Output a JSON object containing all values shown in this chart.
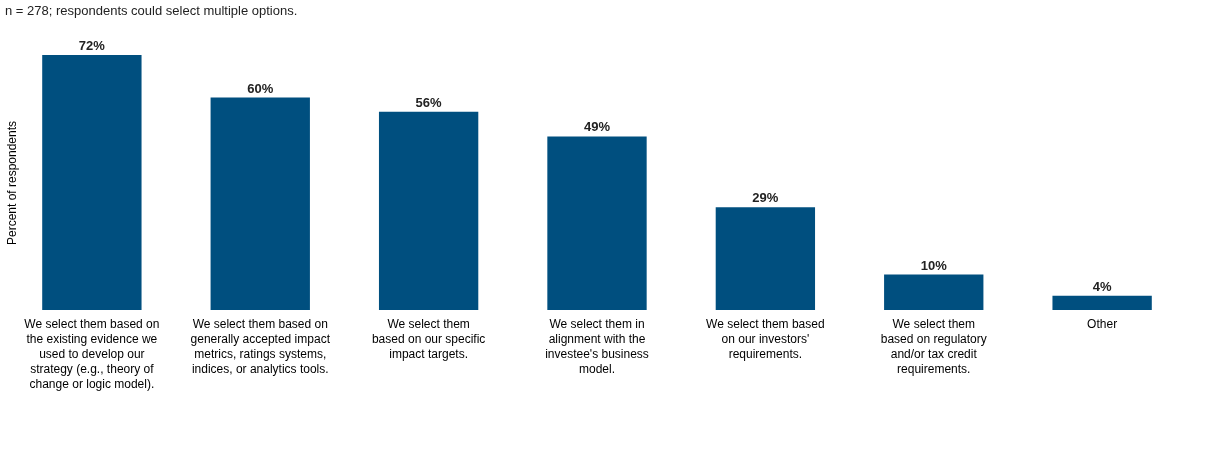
{
  "chart_data": {
    "type": "bar",
    "subtitle": "n = 278; respondents could select multiple options.",
    "ylabel": "Percent of respondents",
    "categories": [
      "We select them based on\nthe existing evidence we\nused to develop our\nstrategy (e.g., theory of\nchange or logic model).",
      "We select them based on\ngenerally accepted impact\nmetrics, ratings systems,\nindices, or analytics tools.",
      "We select them\nbased on our specific\nimpact targets.",
      "We select them in\nalignment with the\ninvestee's business\nmodel.",
      "We select them based\non our investors'\nrequirements.",
      "We select them\nbased on regulatory\nand/or tax credit\nrequirements.",
      "Other"
    ],
    "values": [
      72,
      60,
      56,
      49,
      29,
      10,
      4
    ],
    "value_labels": [
      "72%",
      "60%",
      "56%",
      "49%",
      "29%",
      "10%",
      "4%"
    ],
    "color": "#004f7f",
    "tick_labels": "x",
    "grid": false
  }
}
